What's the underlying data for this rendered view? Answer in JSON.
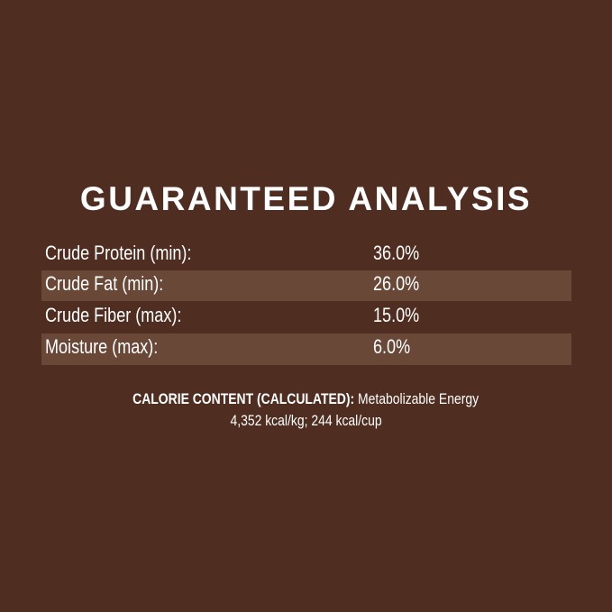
{
  "title": "GUARANTEED ANALYSIS",
  "rows": [
    {
      "label": "Crude Protein (min):",
      "value": "36.0%"
    },
    {
      "label": "Crude Fat (min):",
      "value": "26.0%"
    },
    {
      "label": "Crude Fiber (max):",
      "value": "15.0%"
    },
    {
      "label": "Moisture (max):",
      "value": "6.0%"
    }
  ],
  "calorie": {
    "heading": "CALORIE CONTENT (CALCULATED):",
    "text": "Metabolizable Energy",
    "values": "4,352 kcal/kg; 244 kcal/cup"
  },
  "colors": {
    "background": "#4f2d20",
    "stripe": "#6a4838",
    "text": "#ffffff"
  }
}
